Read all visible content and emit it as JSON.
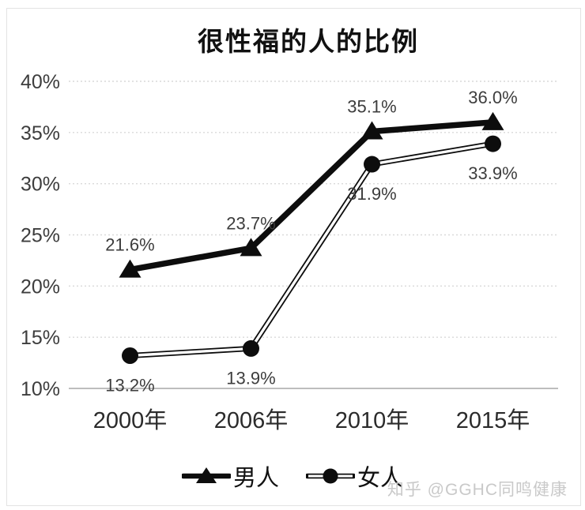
{
  "title": "很性福的人的比例",
  "watermark": "知乎 @GGHC同鸣健康",
  "chart_data": {
    "type": "line",
    "title": "很性福的人的比例",
    "categories": [
      "2000年",
      "2006年",
      "2010年",
      "2015年"
    ],
    "series": [
      {
        "name": "男人",
        "marker": "triangle",
        "line_style": "solid-thick",
        "values": [
          21.6,
          23.7,
          35.1,
          36.0
        ],
        "data_labels": [
          "21.6%",
          "23.7%",
          "35.1%",
          "36.0%"
        ],
        "label_position": "above"
      },
      {
        "name": "女人",
        "marker": "circle",
        "line_style": "double-outline",
        "values": [
          13.2,
          13.9,
          31.9,
          33.9
        ],
        "data_labels": [
          "13.2%",
          "13.9%",
          "31.9%",
          "33.9%"
        ],
        "label_position": "below"
      }
    ],
    "ylim": [
      10,
      40
    ],
    "ytick_step": 5,
    "yticks": [
      {
        "value": 40,
        "label": "40%"
      },
      {
        "value": 35,
        "label": "35%"
      },
      {
        "value": 30,
        "label": "30%"
      },
      {
        "value": 25,
        "label": "25%"
      },
      {
        "value": 20,
        "label": "20%"
      },
      {
        "value": 15,
        "label": "15%"
      },
      {
        "value": 10,
        "label": "10%"
      }
    ],
    "grid": "horizontal-dotted",
    "legend_position": "bottom",
    "colors": {
      "series": "#0d0d0d",
      "grid": "#d9d9d9",
      "axis_line": "#bdbdbd",
      "y_tick_label": "#3d3d3d",
      "x_tick_label": "#2b2b2b",
      "data_label": "#3d3d3d",
      "title": "#111111",
      "watermark": "#c9c9c9"
    }
  }
}
